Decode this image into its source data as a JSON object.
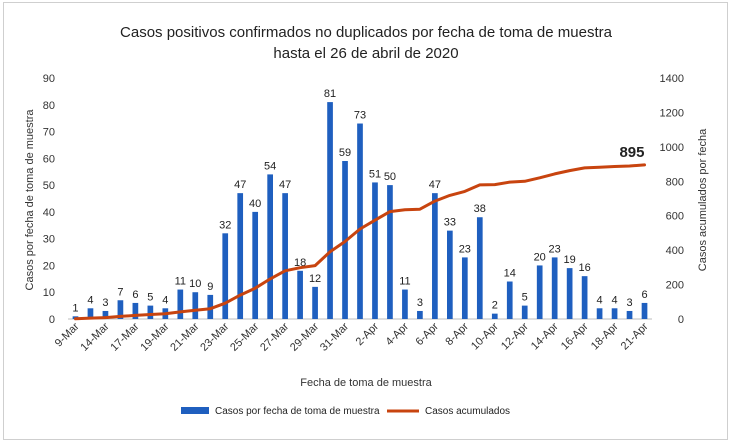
{
  "chart_data": {
    "type": "bar",
    "title": "Casos positivos confirmados no duplicados por fecha de toma de muestra",
    "subtitle": "hasta el 26 de abril de 2020",
    "xlabel": "Fecha de toma de muestra",
    "ylabel": "Casos por fecha de toma de muestra",
    "y2label": "Casos acumulados por fecha",
    "ylim": [
      0,
      90
    ],
    "y_ticks": [
      "0",
      "10",
      "20",
      "30",
      "40",
      "50",
      "60",
      "70",
      "80",
      "90"
    ],
    "y2lim": [
      0,
      1400
    ],
    "y2_ticks": [
      "0",
      "200",
      "400",
      "600",
      "800",
      "1000",
      "1200",
      "1400"
    ],
    "x_tick_labels": [
      "9-Mar",
      "14-Mar",
      "17-Mar",
      "19-Mar",
      "21-Mar",
      "23-Mar",
      "25-Mar",
      "27-Mar",
      "29-Mar",
      "31-Mar",
      "2-Apr",
      "4-Apr",
      "6-Apr",
      "8-Apr",
      "10-Apr",
      "12-Apr",
      "14-Apr",
      "16-Apr",
      "18-Apr",
      "21-Apr"
    ],
    "x_tick_positions": [
      0,
      2,
      4,
      6,
      8,
      10,
      12,
      14,
      16,
      18,
      20,
      22,
      24,
      26,
      28,
      30,
      32,
      34,
      36,
      38
    ],
    "grid": false,
    "legend_position": "bottom",
    "series": [
      {
        "name": "Casos por fecha de toma de muestra",
        "type": "bar",
        "axis": "left",
        "color": "#1f5fbf",
        "values": [
          1,
          4,
          3,
          7,
          6,
          5,
          4,
          11,
          10,
          9,
          32,
          47,
          40,
          54,
          47,
          18,
          12,
          81,
          59,
          73,
          51,
          50,
          11,
          3,
          47,
          33,
          23,
          38,
          2,
          14,
          5,
          20,
          23,
          19,
          16,
          4,
          4,
          3,
          6
        ]
      },
      {
        "name": "Casos acumulados",
        "type": "line",
        "axis": "right",
        "color": "#c8440f",
        "values": [
          1,
          5,
          8,
          15,
          21,
          26,
          30,
          41,
          51,
          60,
          92,
          139,
          179,
          233,
          280,
          298,
          310,
          391,
          450,
          523,
          574,
          624,
          635,
          638,
          685,
          718,
          741,
          779,
          781,
          795,
          800,
          820,
          843,
          862,
          878,
          882,
          886,
          889,
          895
        ]
      }
    ],
    "annotations": [
      "895"
    ]
  }
}
